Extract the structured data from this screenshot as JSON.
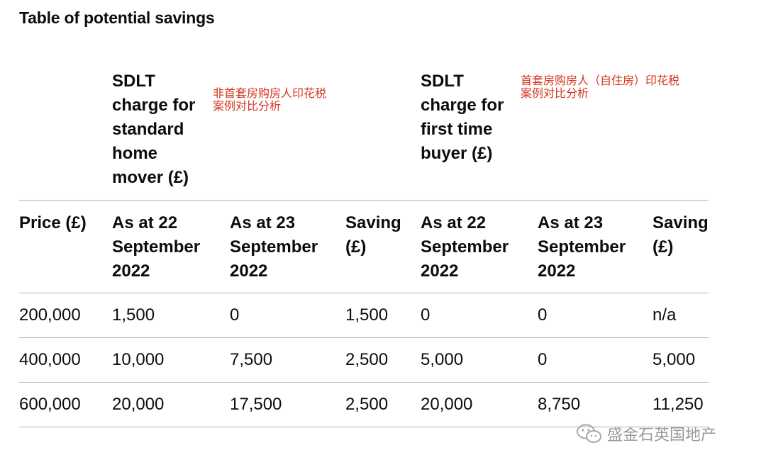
{
  "caption": "Table of potential savings",
  "groups": {
    "standard": {
      "heading": [
        "SDLT",
        "charge for",
        "standard",
        "home",
        "mover (£)"
      ],
      "annotation": [
        "非首套房购房人印花税",
        "案例对比分析"
      ]
    },
    "first_time": {
      "heading": [
        "SDLT",
        "charge for",
        "first time",
        "buyer (£)"
      ],
      "annotation": [
        "首套房购房人（自住房）印花税",
        "案例对比分析"
      ]
    }
  },
  "columns": [
    [
      "Price (£)"
    ],
    [
      "As at 22",
      "September",
      "2022"
    ],
    [
      "As at 23",
      "September",
      "2022"
    ],
    [
      "Saving",
      "(£)"
    ],
    [
      "As at 22",
      "September",
      "2022"
    ],
    [
      "As at 23",
      "September",
      "2022"
    ],
    [
      "Saving",
      "(£)"
    ]
  ],
  "rows": [
    [
      "200,000",
      "1,500",
      "0",
      "1,500",
      "0",
      "0",
      "n/a"
    ],
    [
      "400,000",
      "10,000",
      "7,500",
      "2,500",
      "5,000",
      "0",
      "5,000"
    ],
    [
      "600,000",
      "20,000",
      "17,500",
      "2,500",
      "20,000",
      "8,750",
      "11,250"
    ]
  ],
  "watermark": {
    "text": "盛金石英国地产",
    "icon": "wechat-icon"
  }
}
